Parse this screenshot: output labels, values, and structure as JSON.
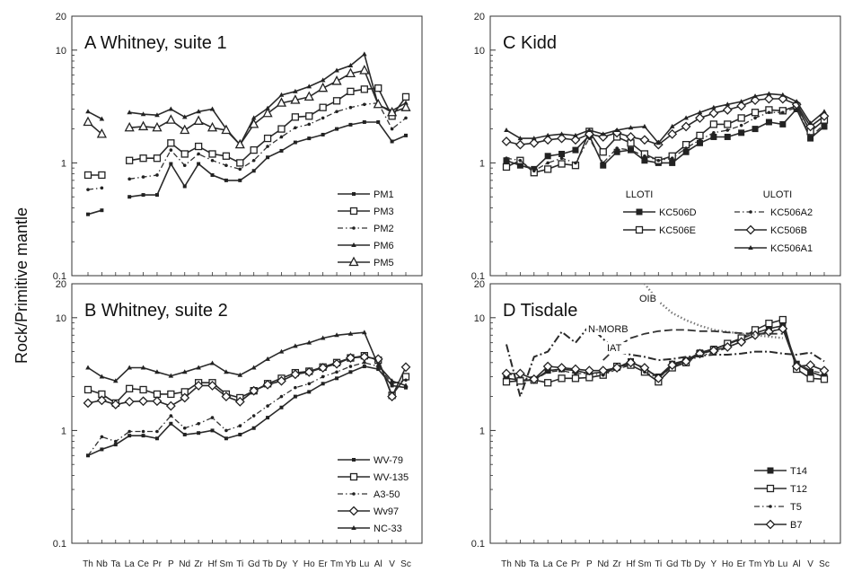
{
  "ylabel": "Rock/Primitive mantle",
  "x_elements": [
    "Th",
    "Nb",
    "Ta",
    "La",
    "Ce",
    "Pr",
    "P",
    "Nd",
    "Zr",
    "Hf",
    "Sm",
    "Ti",
    "Gd",
    "Tb",
    "Dy",
    "Y",
    "Ho",
    "Er",
    "Tm",
    "Yb",
    "Lu",
    "Al",
    "V",
    "Sc"
  ],
  "x_tick_labels_bottom": [
    "Th",
    "Nb",
    "Ta",
    "La",
    "Ce",
    "Pr",
    "P",
    "Nd",
    "Zr",
    "Hf",
    "Sm",
    "Ti",
    "Gd",
    "Tb",
    "Dy",
    "Y",
    "Ho",
    "Er",
    "Tm",
    "Yb",
    "Lu",
    "Al",
    "V",
    "Sc"
  ],
  "y_tick_labels": [
    "0.1",
    "1",
    "10",
    "20"
  ],
  "chart_data": [
    {
      "type": "line",
      "panel": "A",
      "title": "A  Whitney, suite 1",
      "yscale": "log",
      "ylim": [
        0.1,
        20
      ],
      "legend_position": "bottom-right",
      "legend_groups": [],
      "annotations": [],
      "series": [
        {
          "name": "PM1",
          "marker": "small-square",
          "dash": "solid",
          "values": [
            0.35,
            0.38,
            null,
            0.5,
            0.52,
            0.52,
            0.98,
            0.62,
            0.98,
            0.78,
            0.7,
            0.7,
            0.85,
            1.12,
            1.28,
            1.52,
            1.65,
            1.78,
            2.0,
            2.18,
            2.3,
            2.3,
            1.55,
            1.75
          ]
        },
        {
          "name": "PM3",
          "marker": "open-square",
          "dash": "solid",
          "values": [
            0.78,
            0.78,
            null,
            1.05,
            1.1,
            1.1,
            1.5,
            1.2,
            1.4,
            1.2,
            1.15,
            1.0,
            1.3,
            1.65,
            2.0,
            2.55,
            2.6,
            3.1,
            3.55,
            4.3,
            4.5,
            4.6,
            2.6,
            3.85
          ]
        },
        {
          "name": "PM2",
          "marker": "dot",
          "dash": "dashdot",
          "values": [
            0.58,
            0.6,
            null,
            0.72,
            0.75,
            0.78,
            1.3,
            0.95,
            1.2,
            1.05,
            0.95,
            0.88,
            1.05,
            1.4,
            1.7,
            2.05,
            2.2,
            2.5,
            2.85,
            3.1,
            3.3,
            3.4,
            2.0,
            2.5
          ]
        },
        {
          "name": "PM6",
          "marker": "small-triangle",
          "dash": "solid",
          "values": [
            2.85,
            2.45,
            null,
            2.8,
            2.7,
            2.65,
            3.0,
            2.55,
            2.85,
            3.0,
            2.0,
            1.45,
            2.5,
            3.05,
            4.0,
            4.3,
            4.75,
            5.4,
            6.6,
            7.3,
            9.2,
            3.25,
            2.9,
            3.4
          ]
        },
        {
          "name": "PM5",
          "marker": "open-triangle",
          "dash": "solid",
          "values": [
            2.3,
            1.8,
            null,
            2.05,
            2.1,
            2.05,
            2.4,
            1.95,
            2.35,
            2.05,
            1.95,
            1.45,
            2.2,
            2.75,
            3.4,
            3.6,
            3.85,
            4.6,
            5.3,
            6.2,
            6.6,
            3.3,
            2.8,
            3.1
          ]
        }
      ]
    },
    {
      "type": "line",
      "panel": "C",
      "title": "C  Kidd",
      "yscale": "log",
      "ylim": [
        0.1,
        20
      ],
      "legend_position": "bottom-right",
      "legend_groups": [
        "LLOTI",
        "ULOTI"
      ],
      "annotations": [],
      "series": [
        {
          "name": "KC506D",
          "marker": "filled-square",
          "dash": "solid",
          "values": [
            1.05,
            0.95,
            0.88,
            1.15,
            1.2,
            1.3,
            1.75,
            0.95,
            1.25,
            1.3,
            1.05,
            1.0,
            1.0,
            1.25,
            1.5,
            1.7,
            1.7,
            1.85,
            2.0,
            2.3,
            2.2,
            3.0,
            1.65,
            2.1
          ]
        },
        {
          "name": "KC506E",
          "marker": "open-square",
          "dash": "solid",
          "values": [
            0.92,
            1.05,
            0.82,
            0.88,
            0.98,
            0.95,
            1.9,
            1.25,
            1.7,
            1.5,
            1.2,
            1.05,
            1.15,
            1.45,
            1.75,
            2.2,
            2.2,
            2.5,
            2.8,
            2.95,
            2.9,
            3.2,
            1.9,
            2.4
          ]
        },
        {
          "name": "KC506A2",
          "marker": "dot",
          "dash": "dashdot",
          "values": [
            1.1,
            1.05,
            0.85,
            1.0,
            1.1,
            1.0,
            1.65,
            1.0,
            1.35,
            1.3,
            1.15,
            1.05,
            1.1,
            1.35,
            1.6,
            1.85,
            1.95,
            2.15,
            2.5,
            2.8,
            2.8,
            3.1,
            1.7,
            2.2
          ]
        },
        {
          "name": "KC506B",
          "marker": "open-diamond",
          "dash": "solid",
          "values": [
            1.55,
            1.45,
            1.5,
            1.6,
            1.65,
            1.6,
            1.8,
            1.7,
            1.85,
            1.7,
            1.6,
            1.45,
            1.8,
            2.1,
            2.5,
            2.75,
            2.95,
            3.2,
            3.6,
            3.7,
            3.7,
            3.3,
            2.1,
            2.6
          ]
        },
        {
          "name": "KC506A1",
          "marker": "small-triangle",
          "dash": "solid",
          "values": [
            1.95,
            1.65,
            1.65,
            1.75,
            1.8,
            1.75,
            1.95,
            1.8,
            1.95,
            2.05,
            2.1,
            1.5,
            2.1,
            2.5,
            2.8,
            3.1,
            3.3,
            3.5,
            3.9,
            4.1,
            4.0,
            3.5,
            2.25,
            2.85
          ]
        }
      ]
    },
    {
      "type": "line",
      "panel": "B",
      "title": "B  Whitney, suite 2",
      "yscale": "log",
      "ylim": [
        0.1,
        20
      ],
      "legend_position": "bottom-right",
      "legend_groups": [],
      "annotations": [],
      "series": [
        {
          "name": "WV-79",
          "marker": "small-square",
          "dash": "solid",
          "values": [
            0.6,
            0.68,
            0.75,
            0.9,
            0.9,
            0.85,
            1.15,
            0.92,
            0.95,
            1.0,
            0.85,
            0.92,
            1.05,
            1.3,
            1.6,
            2.0,
            2.2,
            2.6,
            2.9,
            3.3,
            3.7,
            3.5,
            2.5,
            2.4
          ]
        },
        {
          "name": "WV-135",
          "marker": "open-square",
          "dash": "solid",
          "values": [
            2.3,
            2.1,
            1.75,
            2.35,
            2.3,
            2.1,
            2.1,
            2.2,
            2.65,
            2.65,
            2.1,
            1.95,
            2.25,
            2.6,
            2.9,
            3.25,
            3.35,
            3.65,
            4.0,
            4.4,
            4.6,
            4.2,
            2.05,
            3.0
          ]
        },
        {
          "name": "A3-50",
          "marker": "dot",
          "dash": "dashdot",
          "values": [
            0.6,
            0.88,
            0.8,
            0.98,
            0.98,
            0.98,
            1.35,
            1.05,
            1.15,
            1.3,
            1.0,
            1.1,
            1.35,
            1.65,
            2.0,
            2.4,
            2.6,
            3.0,
            3.3,
            3.7,
            4.0,
            3.7,
            2.6,
            2.8
          ]
        },
        {
          "name": "Wv97",
          "marker": "open-diamond",
          "dash": "solid",
          "values": [
            1.75,
            1.85,
            1.7,
            1.8,
            1.82,
            1.82,
            1.65,
            1.95,
            2.5,
            2.5,
            2.0,
            1.8,
            2.25,
            2.55,
            2.75,
            3.15,
            3.3,
            3.6,
            3.9,
            4.4,
            4.5,
            4.3,
            2.0,
            3.65
          ]
        },
        {
          "name": "NC-33",
          "marker": "small-triangle",
          "dash": "solid",
          "values": [
            3.6,
            3.0,
            2.75,
            3.6,
            3.6,
            3.3,
            3.05,
            3.3,
            3.6,
            3.95,
            3.3,
            3.1,
            3.6,
            4.3,
            5.0,
            5.6,
            6.0,
            6.6,
            7.0,
            7.2,
            7.4,
            3.8,
            2.75,
            2.5
          ]
        }
      ]
    },
    {
      "type": "line",
      "panel": "D",
      "title": "D  Tisdale",
      "yscale": "log",
      "ylim": [
        0.1,
        20
      ],
      "legend_position": "bottom-right",
      "legend_groups": [],
      "annotations": [
        "OIB",
        "N-MORB",
        "IAT"
      ],
      "series": [
        {
          "name": "T14",
          "marker": "filled-square",
          "dash": "solid",
          "values": [
            2.9,
            2.8,
            2.8,
            3.4,
            3.5,
            3.4,
            3.2,
            3.3,
            3.6,
            4.1,
            3.5,
            3.0,
            3.9,
            4.2,
            4.9,
            5.3,
            5.8,
            6.5,
            7.3,
            8.0,
            8.5,
            3.9,
            3.3,
            3.0
          ]
        },
        {
          "name": "T12",
          "marker": "open-square",
          "dash": "solid",
          "values": [
            2.7,
            2.75,
            2.8,
            2.65,
            2.9,
            2.9,
            2.95,
            3.1,
            3.7,
            3.8,
            3.3,
            2.7,
            3.6,
            4.0,
            4.8,
            5.2,
            5.9,
            6.6,
            7.8,
            8.9,
            9.6,
            3.5,
            2.9,
            2.85
          ]
        },
        {
          "name": "T5",
          "marker": "dot",
          "dash": "dashdot",
          "values": [
            3.2,
            3.0,
            2.8,
            3.3,
            3.4,
            3.2,
            3.2,
            3.1,
            3.5,
            3.8,
            3.3,
            2.9,
            3.7,
            4.0,
            4.6,
            4.9,
            5.4,
            6.2,
            6.9,
            7.6,
            7.9,
            4.0,
            3.4,
            3.2
          ]
        },
        {
          "name": "B7",
          "marker": "open-diamond",
          "dash": "solid",
          "values": [
            3.2,
            3.2,
            2.85,
            3.7,
            3.6,
            3.5,
            3.4,
            3.4,
            3.6,
            4.0,
            3.6,
            2.9,
            3.8,
            4.1,
            4.8,
            5.1,
            5.5,
            6.1,
            7.0,
            7.5,
            8.0,
            3.7,
            3.8,
            3.4
          ]
        },
        {
          "name": "OIB",
          "marker": "none",
          "dash": "dotted",
          "values": [
            null,
            null,
            null,
            null,
            null,
            null,
            null,
            null,
            null,
            50,
            20,
            14,
            11,
            9.5,
            8.5,
            7.8,
            7.5,
            7.2,
            7.0,
            6.8,
            6.6,
            null,
            null,
            null
          ]
        },
        {
          "name": "N-MORB",
          "marker": "none",
          "dash": "longdash",
          "values": [
            null,
            null,
            null,
            null,
            null,
            null,
            null,
            4.2,
            5.5,
            6.6,
            7.2,
            7.6,
            7.8,
            7.8,
            7.6,
            7.6,
            7.4,
            7.3,
            7.2,
            7.2,
            7.2,
            null,
            null,
            null
          ]
        },
        {
          "name": "IAT",
          "marker": "none",
          "dash": "dashdot-heavy",
          "values": [
            5.8,
            2.0,
            4.5,
            5.0,
            7.5,
            6.0,
            8.5,
            6.5,
            5.0,
            4.7,
            4.5,
            4.2,
            4.3,
            4.5,
            4.6,
            4.7,
            4.7,
            4.8,
            5.0,
            5.0,
            4.8,
            4.7,
            4.9,
            4.1
          ]
        }
      ]
    }
  ]
}
